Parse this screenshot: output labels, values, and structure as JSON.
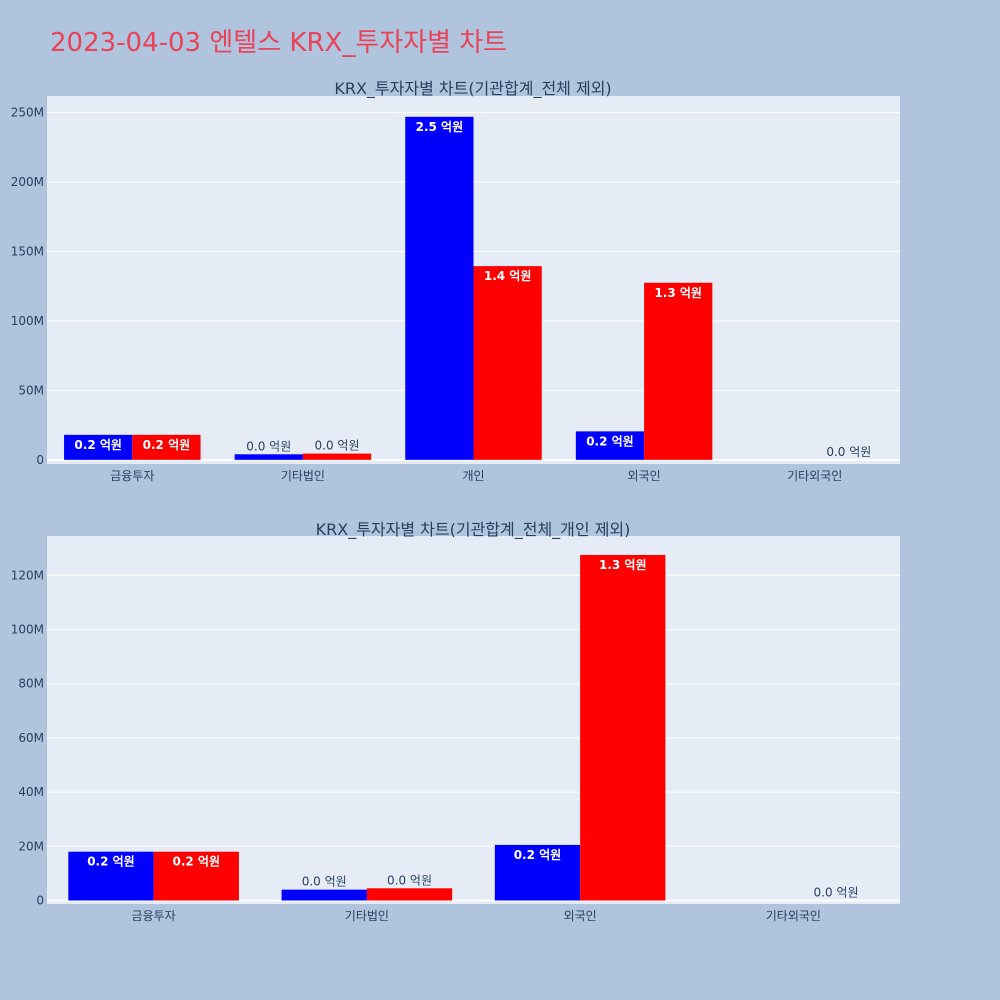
{
  "page_title": "2023-04-03 엔텔스 KRX_투자자별 차트",
  "colors": {
    "background": "#b0c4de",
    "plot_bg": "#e5ecf6",
    "title": "#e8435a",
    "series_a": "#0000ff",
    "series_b": "#ff0000"
  },
  "chart_data": [
    {
      "type": "bar",
      "title": "KRX_투자자별 차트(기관합계_전체 제외)",
      "categories": [
        "금융투자",
        "기타법인",
        "개인",
        "외국인",
        "기타외국인"
      ],
      "series": [
        {
          "color": "#0000ff",
          "values": [
            18000000,
            4000000,
            247000000,
            20500000,
            0
          ],
          "labels": [
            "0.2 억원",
            "0.0 억원",
            "2.5 억원",
            "0.2 억원",
            ""
          ]
        },
        {
          "color": "#ff0000",
          "values": [
            18000000,
            4500000,
            139500000,
            127500000,
            0
          ],
          "labels": [
            "0.2 억원",
            "0.0 억원",
            "1.4 억원",
            "1.3 억원",
            "0.0 억원"
          ]
        }
      ],
      "yticks": [
        0,
        50000000,
        100000000,
        150000000,
        200000000,
        250000000
      ],
      "ytick_labels": [
        "0",
        "50M",
        "100M",
        "150M",
        "200M",
        "250M"
      ],
      "ylim": [
        -3000000,
        262000000
      ],
      "grid": true,
      "legend": "none"
    },
    {
      "type": "bar",
      "title": "KRX_투자자별 차트(기관합계_전체_개인 제외)",
      "categories": [
        "금융투자",
        "기타법인",
        "외국인",
        "기타외국인"
      ],
      "series": [
        {
          "color": "#0000ff",
          "values": [
            18000000,
            4000000,
            20500000,
            0
          ],
          "labels": [
            "0.2 억원",
            "0.0 억원",
            "0.2 억원",
            ""
          ]
        },
        {
          "color": "#ff0000",
          "values": [
            18000000,
            4500000,
            127500000,
            0
          ],
          "labels": [
            "0.2 억원",
            "0.0 억원",
            "1.3 억원",
            "0.0 억원"
          ]
        }
      ],
      "yticks": [
        0,
        20000000,
        40000000,
        60000000,
        80000000,
        100000000,
        120000000
      ],
      "ytick_labels": [
        "0",
        "20M",
        "40M",
        "60M",
        "80M",
        "100M",
        "120M"
      ],
      "ylim": [
        -1300000,
        134500000
      ],
      "grid": true,
      "legend": "none"
    }
  ]
}
